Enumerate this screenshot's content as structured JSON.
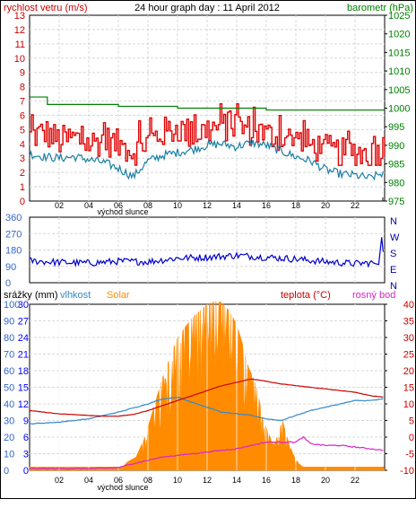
{
  "colors": {
    "wind_speed": "#e00000",
    "wind_gust": "#e00000",
    "pressure": "#008000",
    "wind_avg": "#1a7fa5",
    "wind_dir": "#0000cc",
    "rain_axis": "#0000ff",
    "humidity": "#3388cc",
    "solar": "#ff8c00",
    "temperature": "#cc0000",
    "dew_point": "#dd22cc",
    "grid": "#d8d8d8",
    "axis_red": "#cc0000",
    "axis_green": "#008000",
    "axis_blue": "#3366cc"
  },
  "chart_data": [
    {
      "id": "wind_pressure",
      "type": "line",
      "title": "24 hour graph day : 11 April 2012",
      "left_label": "rychlost vetru (m/s)",
      "right_label": "barometr (hPa)",
      "x_label": "východ slunce",
      "x_ticks": [
        "02",
        "04",
        "06",
        "08",
        "10",
        "12",
        "14",
        "16",
        "18",
        "20",
        "22"
      ],
      "x_range_hours": [
        0,
        24
      ],
      "y_left_range": [
        0,
        13
      ],
      "y_left_ticks": [
        "0",
        "1",
        "2",
        "3",
        "4",
        "5",
        "6",
        "7",
        "8",
        "9",
        "10",
        "11",
        "12",
        "13"
      ],
      "y_right_range": [
        975,
        1025
      ],
      "y_right_ticks": [
        "975",
        "980",
        "985",
        "990",
        "995",
        "1000",
        "1005",
        "1010",
        "1015",
        "1020",
        "1025"
      ],
      "grid": true,
      "series": [
        {
          "key": "wind_gust",
          "axis": "left",
          "x": [
            0,
            1,
            2,
            3,
            4,
            5,
            6,
            7,
            8,
            9,
            10,
            11,
            12,
            13,
            14,
            15,
            16,
            17,
            18,
            19,
            20,
            21,
            22,
            23,
            24
          ],
          "values": [
            4.5,
            4.8,
            4.2,
            4.4,
            4.0,
            4.3,
            3.9,
            3.5,
            4.2,
            4.8,
            5.1,
            4.6,
            5.0,
            5.2,
            5.3,
            4.9,
            4.6,
            4.5,
            4.2,
            3.9,
            3.6,
            3.3,
            3.5,
            3.2,
            3.8
          ]
        },
        {
          "key": "wind_avg",
          "axis": "left",
          "x": [
            0,
            1,
            2,
            3,
            4,
            5,
            6,
            7,
            8,
            9,
            10,
            11,
            12,
            13,
            14,
            15,
            16,
            17,
            18,
            19,
            20,
            21,
            22,
            23,
            24
          ],
          "values": [
            3.3,
            3.1,
            3.0,
            3.1,
            2.9,
            2.7,
            2.3,
            1.7,
            2.8,
            3.2,
            3.4,
            3.6,
            3.9,
            4.0,
            3.8,
            4.1,
            3.9,
            3.5,
            3.1,
            2.8,
            2.2,
            1.9,
            1.8,
            1.6,
            2.0
          ]
        },
        {
          "key": "pressure",
          "axis": "right",
          "x": [
            0,
            0.6,
            1.2,
            4,
            6,
            8,
            10,
            12,
            14,
            16,
            18,
            20,
            22,
            24
          ],
          "values": [
            1003,
            1003,
            1001,
            1001,
            1000.5,
            1000.5,
            1000,
            1000,
            1000,
            999.5,
            999.5,
            999.5,
            999.5,
            999.5
          ]
        }
      ]
    },
    {
      "id": "wind_direction",
      "type": "line",
      "y_ticks": [
        "0",
        "90",
        "180",
        "270",
        "360"
      ],
      "y_range": [
        0,
        360
      ],
      "compass": [
        "N",
        "W",
        "S",
        "E",
        "N"
      ],
      "x_ticks": [
        "02",
        "04",
        "06",
        "08",
        "10",
        "12",
        "14",
        "16",
        "18",
        "20",
        "22"
      ],
      "x_range_hours": [
        0,
        24
      ],
      "series": [
        {
          "key": "wind_dir",
          "x": [
            0,
            2,
            4,
            6,
            8,
            10,
            12,
            14,
            16,
            18,
            20,
            22,
            23.5,
            24
          ],
          "values": [
            120,
            112,
            108,
            118,
            115,
            135,
            140,
            150,
            140,
            130,
            115,
            105,
            110,
            250
          ]
        }
      ]
    },
    {
      "id": "weather",
      "type": "area",
      "labels": {
        "rain": "srážky (mm)",
        "humidity": "vlhkost",
        "solar": "Solar",
        "temperature": "teplota (°C)",
        "dew": "rosný bod"
      },
      "x_label": "východ slunce",
      "x_ticks": [
        "02",
        "04",
        "06",
        "08",
        "10",
        "12",
        "14",
        "16",
        "18",
        "20",
        "22"
      ],
      "x_range_hours": [
        0,
        24
      ],
      "y_rain_ticks": [
        "0",
        "3",
        "6",
        "9",
        "12",
        "15",
        "18",
        "21",
        "24",
        "27",
        "30"
      ],
      "y_humidity_ticks": [
        "0",
        "10",
        "20",
        "30",
        "40",
        "50",
        "60",
        "70",
        "80",
        "90",
        "100"
      ],
      "y_temp_ticks": [
        "-10",
        "-5",
        "0",
        "5",
        "10",
        "15",
        "20",
        "25",
        "30",
        "35",
        "40"
      ],
      "y_temp_range": [
        -10,
        40
      ],
      "y_humidity_range": [
        0,
        100
      ],
      "y_solar_range": [
        0,
        1000
      ],
      "grid": true,
      "series": [
        {
          "key": "temperature",
          "axis": "temp",
          "x": [
            0,
            1,
            2,
            3,
            4,
            5,
            6,
            7,
            8,
            9,
            10,
            11,
            12,
            13,
            14,
            15,
            16,
            17,
            18,
            19,
            20,
            21,
            22,
            23,
            24
          ],
          "values": [
            8,
            7.5,
            7,
            6.8,
            6.5,
            6.3,
            6.3,
            6.8,
            8,
            9.5,
            11,
            12.5,
            14,
            15.5,
            16.5,
            17.5,
            16.8,
            16,
            15.5,
            15,
            14.5,
            14,
            13.5,
            12.5,
            12
          ]
        },
        {
          "key": "dew_point",
          "axis": "temp",
          "x": [
            0,
            2,
            4,
            6,
            7,
            8,
            9,
            10,
            11,
            12,
            13,
            14,
            15,
            16,
            17,
            18,
            18.5,
            19,
            20,
            21,
            22,
            23,
            24
          ],
          "values": [
            -9.5,
            -9.5,
            -9.5,
            -9.2,
            -8,
            -7,
            -6,
            -5.5,
            -5,
            -4.5,
            -4,
            -3.5,
            -2.5,
            -1.5,
            -1.5,
            -1.5,
            0,
            -2,
            -2.5,
            -2.5,
            -3,
            -3.5,
            -4
          ]
        },
        {
          "key": "humidity",
          "axis": "humidity",
          "x": [
            0,
            2,
            4,
            6,
            8,
            9,
            10,
            11,
            12,
            13,
            14,
            15,
            16,
            17,
            18,
            19,
            20,
            21,
            22,
            23,
            24
          ],
          "values": [
            28,
            29,
            31,
            35,
            40,
            43,
            44,
            41,
            38,
            35,
            34,
            33,
            31,
            30,
            33,
            36,
            38,
            40,
            42,
            42,
            43
          ]
        },
        {
          "key": "solar",
          "axis": "solar",
          "x": [
            0,
            6.3,
            6.6,
            7.2,
            7.8,
            8.3,
            9,
            10,
            11,
            12,
            12.6,
            13,
            13.5,
            14,
            14.4,
            14.8,
            15.3,
            15.8,
            16.5,
            16.8,
            17.1,
            17.4,
            17.8,
            18.2,
            18.5,
            24
          ],
          "values": [
            20,
            20,
            50,
            80,
            200,
            350,
            560,
            800,
            920,
            1000,
            1020,
            1010,
            960,
            880,
            760,
            620,
            520,
            300,
            150,
            220,
            300,
            200,
            100,
            40,
            20,
            20
          ]
        }
      ]
    }
  ]
}
